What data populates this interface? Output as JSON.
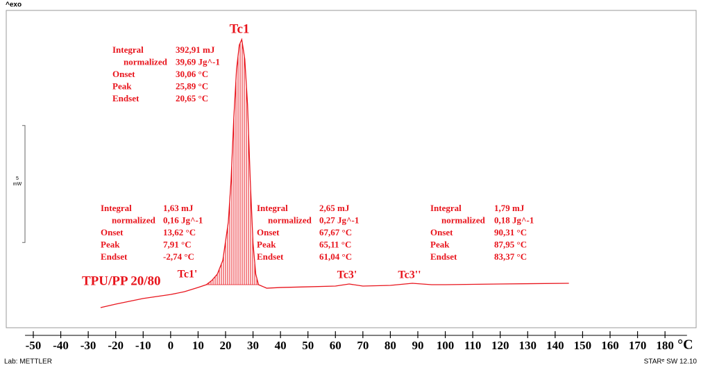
{
  "chart_data": {
    "type": "line",
    "exo_label": "^exo",
    "sample": "TPU/PP 20/80",
    "x": [
      -25.5,
      -20,
      -10,
      0,
      5,
      10,
      13,
      15,
      17,
      19,
      21,
      22,
      23,
      24,
      25,
      25.9,
      27,
      28,
      29,
      30,
      31,
      32,
      35,
      40,
      50,
      60,
      65,
      70,
      80,
      88,
      95,
      100,
      120,
      145
    ],
    "values": [
      0.8,
      0.95,
      1.19,
      1.36,
      1.48,
      1.66,
      1.78,
      1.96,
      2.23,
      2.82,
      4.45,
      6.23,
      8.9,
      10.98,
      12.02,
      12.26,
      11.42,
      9.5,
      6.23,
      3.56,
      2.23,
      1.78,
      1.63,
      1.66,
      1.69,
      1.72,
      1.81,
      1.72,
      1.75,
      1.84,
      1.78,
      1.78,
      1.81,
      1.84
    ],
    "color": "#e8141c",
    "xlim": [
      -53,
      188
    ],
    "xticks": [
      -50,
      -40,
      -30,
      -20,
      -10,
      0,
      10,
      20,
      30,
      40,
      50,
      60,
      70,
      80,
      90,
      100,
      110,
      120,
      130,
      140,
      150,
      160,
      170,
      180
    ],
    "x_unit": "°C",
    "ylim": [
      0,
      13.5
    ],
    "scale_bar": {
      "value": 5,
      "unit": "mW"
    },
    "peaks": [
      "Tc1",
      "Tc1'",
      "Tc3'",
      "Tc3''"
    ],
    "results": [
      [
        [
          "Integral",
          "392,91 mJ"
        ],
        [
          "normalized",
          "39,69 Jg^-1"
        ],
        [
          "Onset",
          "30,06 °C"
        ],
        [
          "Peak",
          "25,89 °C"
        ],
        [
          "Endset",
          "20,65 °C"
        ]
      ],
      [
        [
          "Integral",
          "1,63 mJ"
        ],
        [
          "normalized",
          "0,16 Jg^-1"
        ],
        [
          "Onset",
          "13,62 °C"
        ],
        [
          "Peak",
          "7,91 °C"
        ],
        [
          "Endset",
          "-2,74 °C"
        ]
      ],
      [
        [
          "Integral",
          "2,65 mJ"
        ],
        [
          "normalized",
          "0,27 Jg^-1"
        ],
        [
          "Onset",
          "67,67 °C"
        ],
        [
          "Peak",
          "65,11 °C"
        ],
        [
          "Endset",
          "61,04 °C"
        ]
      ],
      [
        [
          "Integral",
          "1,79 mJ"
        ],
        [
          "normalized",
          "0,18 Jg^-1"
        ],
        [
          "Onset",
          "90,31 °C"
        ],
        [
          "Peak",
          "87,95 °C"
        ],
        [
          "Endset",
          "83,37 °C"
        ]
      ]
    ],
    "footer_left": "Lab: METTLER",
    "footer_right": "STARᵉ SW 12.10"
  }
}
